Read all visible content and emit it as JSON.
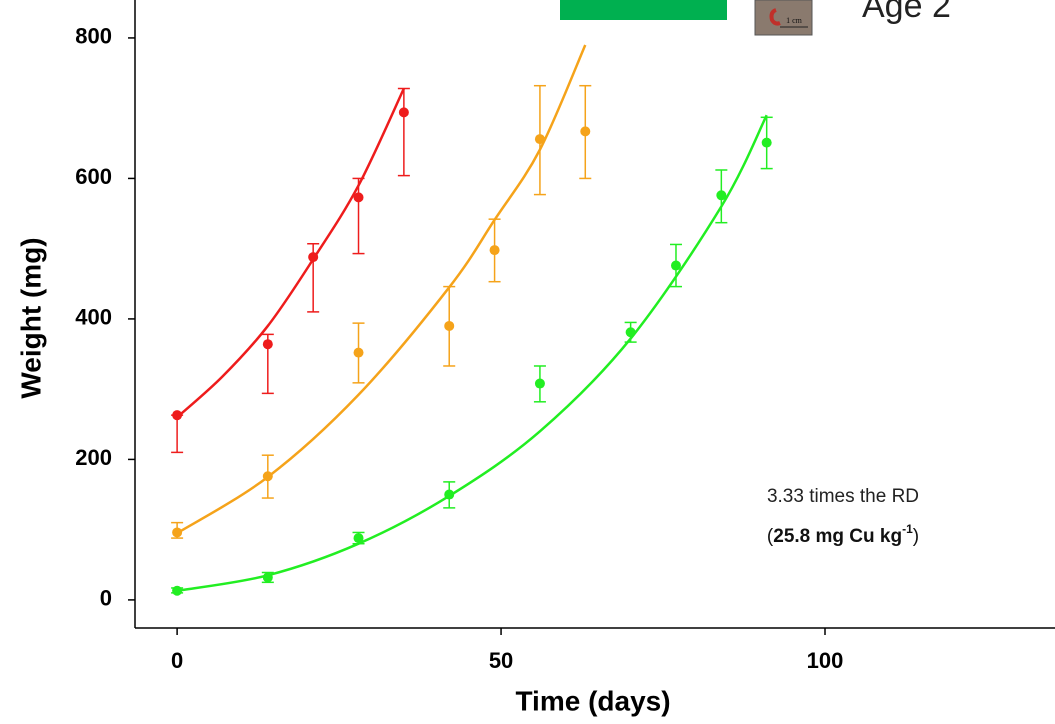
{
  "chart_data": {
    "type": "scatter",
    "x_label": "Time (days)",
    "y_label": "Weight (mg)",
    "xlim": [
      -6.5,
      135.5
    ],
    "ylim": [
      -40,
      854
    ],
    "xticks": [
      0,
      50,
      100
    ],
    "yticks": [
      0,
      200,
      400,
      600,
      800
    ],
    "series": [
      {
        "color": "#ee1c1c",
        "x": [
          0,
          14,
          21,
          28,
          35
        ],
        "values": [
          263,
          364,
          488,
          573,
          694
        ],
        "lower": [
          210,
          294,
          410,
          493,
          604
        ],
        "upper": [
          263,
          378,
          507,
          600,
          728
        ]
      },
      {
        "color": "#f5a31a",
        "x": [
          0,
          14,
          28,
          42,
          49,
          56,
          63
        ],
        "values": [
          96,
          176,
          352,
          390,
          498,
          656,
          667
        ],
        "lower": [
          88,
          145,
          309,
          333,
          453,
          577,
          600
        ],
        "upper": [
          110,
          206,
          394,
          446,
          542,
          732,
          732
        ]
      },
      {
        "color": "#22ee22",
        "x": [
          0,
          14,
          28,
          42,
          56,
          70,
          77,
          84,
          91
        ],
        "values": [
          13,
          32,
          88,
          150,
          308,
          381,
          476,
          576,
          651
        ],
        "lower": [
          10,
          25,
          80,
          131,
          282,
          367,
          446,
          537,
          614
        ],
        "upper": [
          17,
          39,
          96,
          168,
          333,
          395,
          506,
          612,
          687
        ]
      }
    ],
    "fits": [
      {
        "color": "#ee1c1c",
        "x": [
          0,
          7,
          14,
          21,
          28,
          35
        ],
        "values": [
          260,
          318,
          390,
          485,
          590,
          728
        ]
      },
      {
        "color": "#f5a31a",
        "x": [
          0,
          14,
          28,
          42,
          49,
          56,
          63
        ],
        "values": [
          95,
          175,
          292,
          445,
          541,
          641,
          790
        ]
      },
      {
        "color": "#22ee22",
        "x": [
          0,
          14,
          28,
          42,
          56,
          70,
          84,
          91
        ],
        "values": [
          13,
          35,
          80,
          148,
          240,
          372,
          560,
          690
        ]
      }
    ],
    "annotation": {
      "line1": "3.33 times the RD",
      "line2": [
        {
          "text": "(",
          "style": "normal"
        },
        {
          "text": "25.8 mg Cu kg",
          "style": "bold"
        },
        {
          "text": "-1",
          "style": "bold-sup"
        },
        {
          "text": ")",
          "style": "normal"
        }
      ]
    },
    "header_text": "Age 2",
    "inset_scale": "1 cm"
  }
}
